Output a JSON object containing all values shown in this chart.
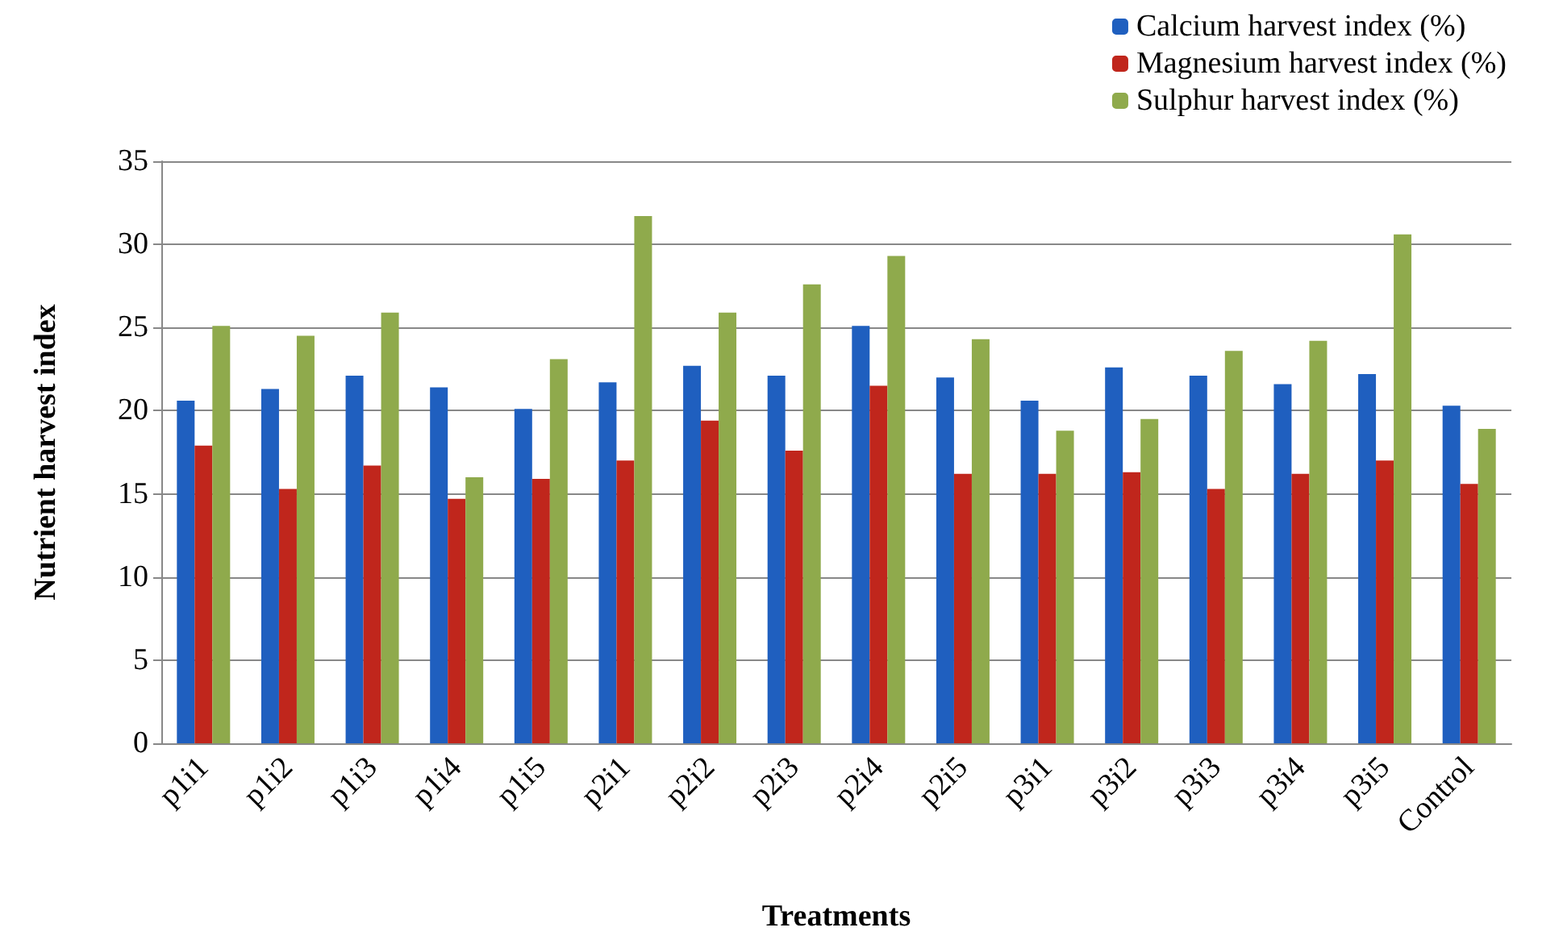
{
  "chart_data": {
    "type": "bar",
    "xlabel": "Treatments",
    "ylabel": "Nutrient harvest index",
    "categories": [
      "p1i1",
      "p1i2",
      "p1i3",
      "p1i4",
      "p1i5",
      "p2i1",
      "p2i2",
      "p2i3",
      "p2i4",
      "p2i5",
      "p3i1",
      "p3i2",
      "p3i3",
      "p3i4",
      "p3i5",
      "Control"
    ],
    "series": [
      {
        "name": "Calcium harvest index (%)",
        "color": "#1f5fbf",
        "values": [
          20.6,
          21.3,
          22.1,
          21.4,
          20.1,
          21.7,
          22.7,
          22.1,
          25.1,
          22.0,
          20.6,
          22.6,
          22.1,
          21.6,
          22.2,
          20.3
        ]
      },
      {
        "name": "Magnesium harvest index (%)",
        "color": "#c0261c",
        "values": [
          17.9,
          15.3,
          16.7,
          14.7,
          15.9,
          17.0,
          19.4,
          17.6,
          21.5,
          16.2,
          16.2,
          16.3,
          15.3,
          16.2,
          17.0,
          15.6
        ]
      },
      {
        "name": "Sulphur harvest index (%)",
        "color": "#8faa4c",
        "values": [
          25.1,
          24.5,
          25.9,
          16.0,
          23.1,
          31.7,
          25.9,
          27.6,
          29.3,
          24.3,
          18.8,
          19.5,
          23.6,
          24.2,
          30.6,
          18.9
        ]
      }
    ],
    "ylim": [
      0,
      35
    ],
    "yticks": [
      0,
      5,
      10,
      15,
      20,
      25,
      30,
      35
    ],
    "grid": "y",
    "legend": "top right"
  }
}
